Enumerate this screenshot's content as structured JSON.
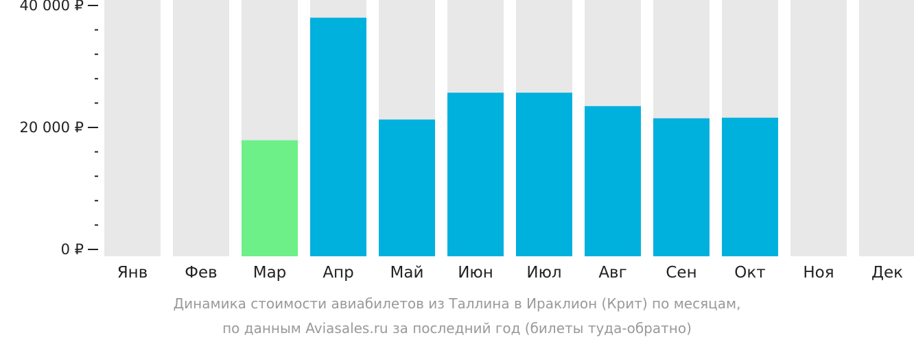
{
  "chart_data": {
    "type": "bar",
    "categories": [
      "Янв",
      "Фев",
      "Мар",
      "Апр",
      "Май",
      "Июн",
      "Июл",
      "Авг",
      "Сен",
      "Окт",
      "Ноя",
      "Дек"
    ],
    "values": [
      null,
      null,
      17900,
      38000,
      21300,
      25700,
      25700,
      23500,
      21500,
      21600,
      null,
      null
    ],
    "highlight_category": "Мар",
    "ylim": [
      0,
      40000
    ],
    "yticks": [
      {
        "value": 0,
        "label": "0 ₽"
      },
      {
        "value": 20000,
        "label": "20 000 ₽"
      },
      {
        "value": 40000,
        "label": "40 000 ₽"
      }
    ],
    "minor_tick_step": 4000,
    "caption": [
      "Динамика стоимости авиабилетов из Таллина в Ираклион (Крит) по месяцам,",
      "по данным Aviasales.ru за последний год (билеты туда-обратно)"
    ],
    "colors": {
      "bar": "#00b0dd",
      "highlight": "#6cf087",
      "background_bar": "#e8e8e8",
      "axis": "#222222"
    }
  }
}
